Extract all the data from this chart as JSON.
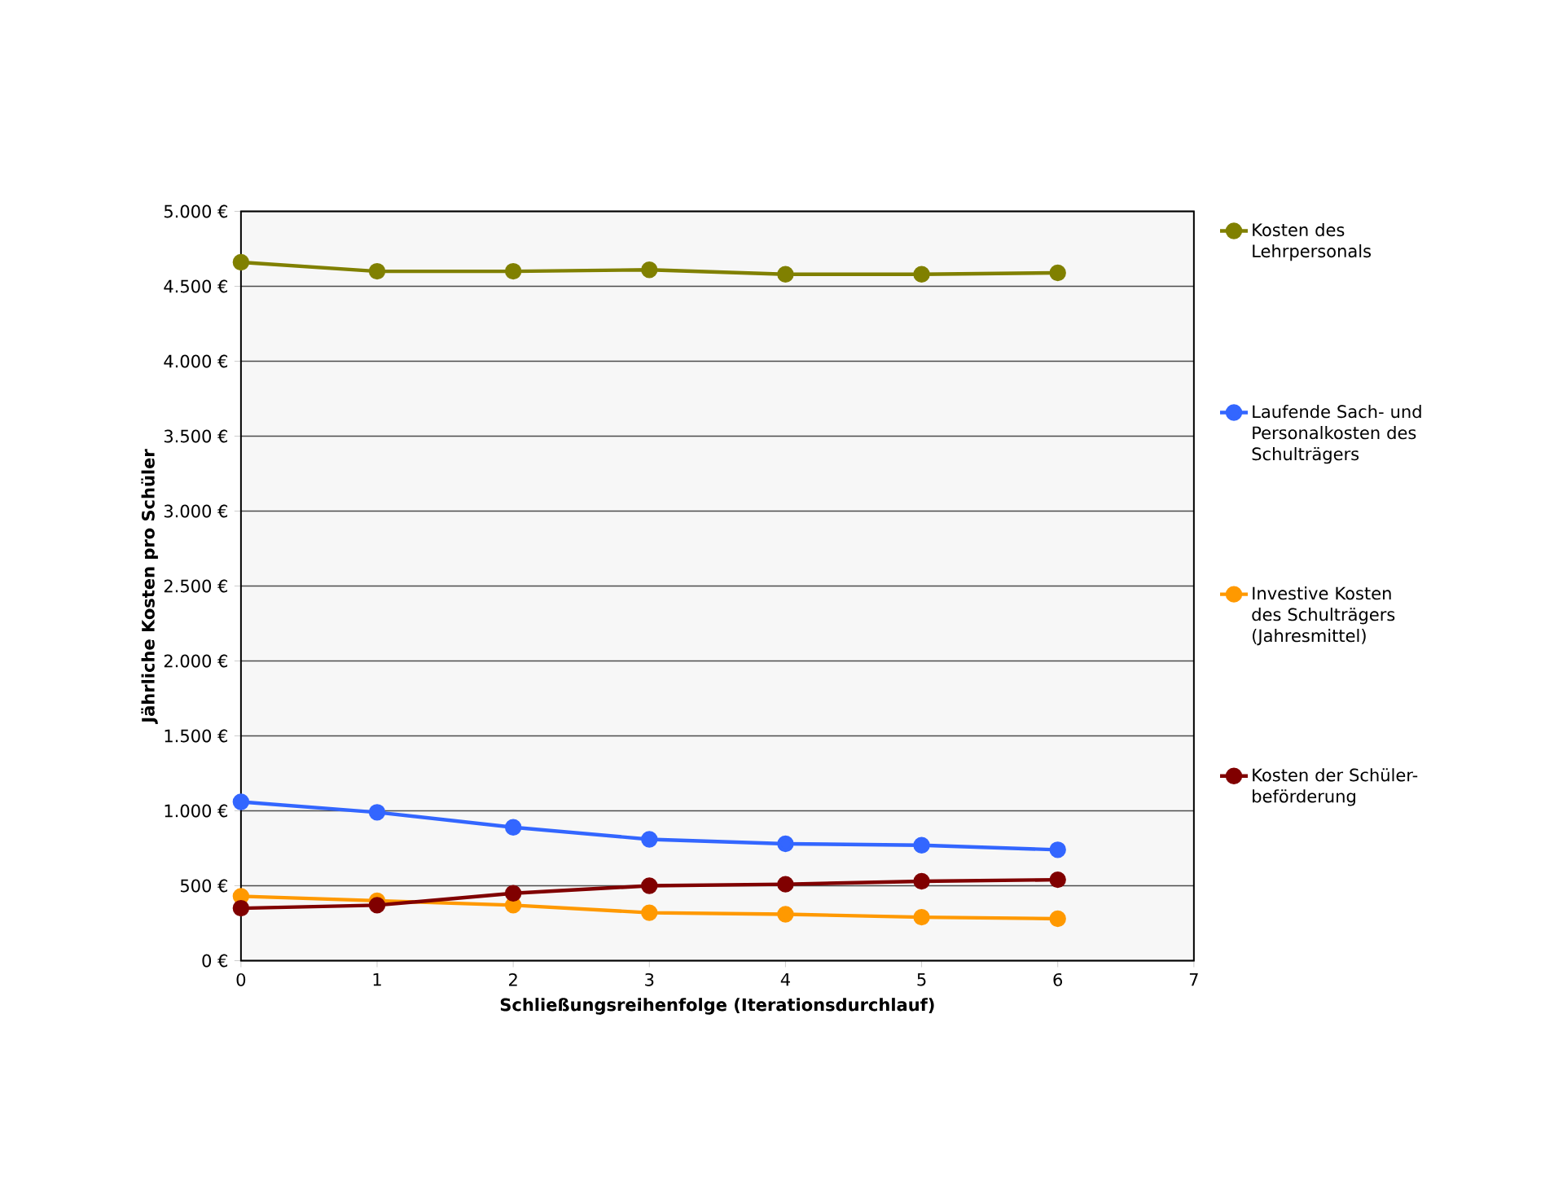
{
  "chart_data": {
    "type": "line",
    "xlabel": "Schließungsreihenfolge (Iterationsdurchlauf)",
    "ylabel": "Jährliche Kosten pro Schüler",
    "x": [
      0,
      1,
      2,
      3,
      4,
      5,
      6
    ],
    "series": [
      {
        "name": "Kosten des Lehrpersonals",
        "color": "#808000",
        "values": [
          4660,
          4600,
          4600,
          4610,
          4580,
          4580,
          4590
        ]
      },
      {
        "name": "Laufende Sach- und Personalkosten des Schulträgers",
        "color": "#3366ff",
        "values": [
          1060,
          990,
          890,
          810,
          780,
          770,
          740
        ]
      },
      {
        "name": "Investive Kosten des Schulträgers (Jahresmittel)",
        "color": "#ff9900",
        "values": [
          430,
          400,
          370,
          320,
          310,
          290,
          280
        ]
      },
      {
        "name": "Kosten der Schüler-beförderung",
        "color": "#800000",
        "values": [
          350,
          370,
          450,
          500,
          510,
          530,
          540
        ]
      }
    ],
    "xlim": [
      0,
      7
    ],
    "xticks": [
      0,
      1,
      2,
      3,
      4,
      5,
      6,
      7
    ],
    "ylim": [
      0,
      5000
    ],
    "yticks": [
      {
        "value": 0,
        "label": "0 €"
      },
      {
        "value": 500,
        "label": "500 €"
      },
      {
        "value": 1000,
        "label": "1.000 €"
      },
      {
        "value": 1500,
        "label": "1.500 €"
      },
      {
        "value": 2000,
        "label": "2.000 €"
      },
      {
        "value": 2500,
        "label": "2.500 €"
      },
      {
        "value": 3000,
        "label": "3.000 €"
      },
      {
        "value": 3500,
        "label": "3.500 €"
      },
      {
        "value": 4000,
        "label": "4.000 €"
      },
      {
        "value": 4500,
        "label": "4.500 €"
      },
      {
        "value": 5000,
        "label": "5.000 €"
      }
    ],
    "grid": "y",
    "legend": "right",
    "marker": "circle",
    "line_style": "solid"
  }
}
